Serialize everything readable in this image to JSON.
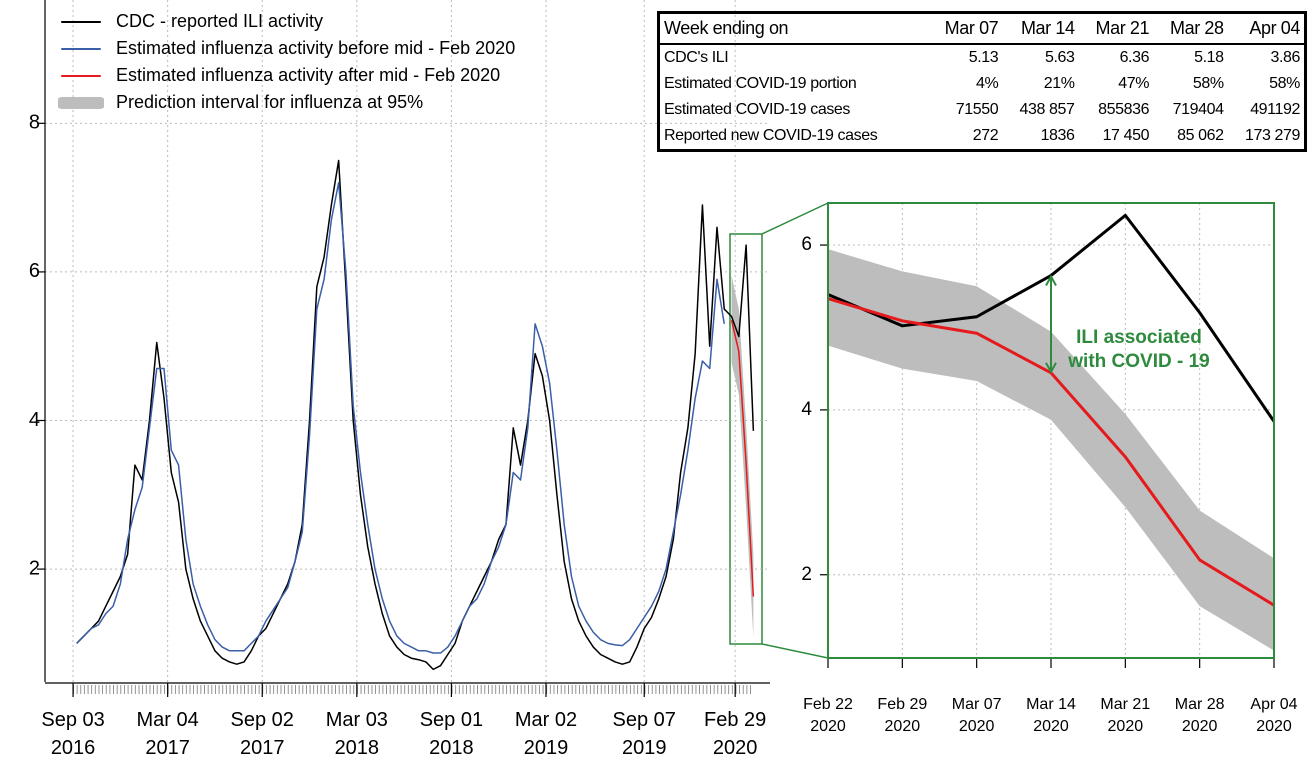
{
  "chart_data": [
    {
      "type": "line",
      "legend": "top-left",
      "grid": true,
      "xlim": [
        "2016-07-11",
        "2020-05-06"
      ],
      "ylim": [
        0.48,
        9.66
      ],
      "yticks": [
        2,
        4,
        6,
        8
      ],
      "xticks": [
        {
          "value": "2016-09-03",
          "label": "Sep 03\n2016"
        },
        {
          "value": "2017-03-04",
          "label": "Mar 04\n2017"
        },
        {
          "value": "2017-09-02",
          "label": "Sep 02\n2017"
        },
        {
          "value": "2018-03-03",
          "label": "Mar 03\n2018"
        },
        {
          "value": "2018-09-01",
          "label": "Sep 01\n2018"
        },
        {
          "value": "2019-03-02",
          "label": "Mar 02\n2019"
        },
        {
          "value": "2019-09-07",
          "label": "Sep 07\n2019"
        },
        {
          "value": "2020-02-29",
          "label": "Feb 29\n2020"
        }
      ],
      "x": [
        "2016-09-10",
        "2016-09-24",
        "2016-10-08",
        "2016-10-22",
        "2016-11-05",
        "2016-11-19",
        "2016-12-03",
        "2016-12-17",
        "2016-12-31",
        "2017-01-14",
        "2017-01-28",
        "2017-02-11",
        "2017-02-25",
        "2017-03-11",
        "2017-03-25",
        "2017-04-08",
        "2017-04-22",
        "2017-05-06",
        "2017-05-20",
        "2017-06-03",
        "2017-06-17",
        "2017-07-01",
        "2017-07-15",
        "2017-07-29",
        "2017-08-12",
        "2017-08-26",
        "2017-09-09",
        "2017-09-23",
        "2017-10-07",
        "2017-10-21",
        "2017-11-04",
        "2017-11-18",
        "2017-12-02",
        "2017-12-16",
        "2017-12-30",
        "2018-01-13",
        "2018-01-27",
        "2018-02-10",
        "2018-02-24",
        "2018-03-10",
        "2018-03-24",
        "2018-04-07",
        "2018-04-21",
        "2018-05-05",
        "2018-05-19",
        "2018-06-02",
        "2018-06-16",
        "2018-06-30",
        "2018-07-14",
        "2018-07-28",
        "2018-08-11",
        "2018-08-25",
        "2018-09-08",
        "2018-09-22",
        "2018-10-06",
        "2018-10-20",
        "2018-11-03",
        "2018-11-17",
        "2018-12-01",
        "2018-12-15",
        "2018-12-29",
        "2019-01-12",
        "2019-01-26",
        "2019-02-09",
        "2019-02-23",
        "2019-03-09",
        "2019-03-23",
        "2019-04-06",
        "2019-04-20",
        "2019-05-04",
        "2019-05-18",
        "2019-06-01",
        "2019-06-15",
        "2019-06-29",
        "2019-07-13",
        "2019-07-27",
        "2019-08-10",
        "2019-08-24",
        "2019-09-07",
        "2019-09-21",
        "2019-10-05",
        "2019-10-19",
        "2019-11-02",
        "2019-11-16",
        "2019-11-30",
        "2019-12-14",
        "2019-12-28",
        "2020-01-11",
        "2020-01-25",
        "2020-02-08",
        "2020-02-22",
        "2020-03-07",
        "2020-03-21",
        "2020-04-04"
      ],
      "series": [
        {
          "name": "CDC - reported ILI activity",
          "color": "#000000",
          "values": [
            1.0,
            1.1,
            1.2,
            1.3,
            1.5,
            1.7,
            1.9,
            2.2,
            3.4,
            3.2,
            4.0,
            5.05,
            4.3,
            3.3,
            2.9,
            2.0,
            1.6,
            1.3,
            1.1,
            0.9,
            0.8,
            0.75,
            0.72,
            0.75,
            0.9,
            1.1,
            1.2,
            1.4,
            1.6,
            1.8,
            2.1,
            2.6,
            4.0,
            5.8,
            6.2,
            6.9,
            7.5,
            5.8,
            4.0,
            3.0,
            2.3,
            1.8,
            1.4,
            1.1,
            0.95,
            0.85,
            0.8,
            0.78,
            0.75,
            0.65,
            0.7,
            0.85,
            1.0,
            1.3,
            1.5,
            1.7,
            1.9,
            2.1,
            2.4,
            2.6,
            3.9,
            3.4,
            4.0,
            4.9,
            4.6,
            4.0,
            3.0,
            2.1,
            1.6,
            1.3,
            1.1,
            0.95,
            0.85,
            0.8,
            0.75,
            0.72,
            0.75,
            0.95,
            1.2,
            1.35,
            1.6,
            1.9,
            2.4,
            3.3,
            3.9,
            4.9,
            6.9,
            5.0,
            6.6,
            5.5,
            5.4,
            5.13,
            6.36,
            3.86
          ]
        },
        {
          "name": "Estimated influenza activity before mid - Feb 2020",
          "color": "#3a5fa8",
          "values": [
            1.0,
            1.1,
            1.2,
            1.25,
            1.4,
            1.5,
            1.8,
            2.4,
            2.8,
            3.1,
            3.9,
            4.7,
            4.7,
            3.6,
            3.4,
            2.4,
            1.8,
            1.5,
            1.25,
            1.05,
            0.95,
            0.9,
            0.9,
            0.9,
            1.0,
            1.1,
            1.3,
            1.45,
            1.6,
            1.75,
            2.1,
            2.5,
            3.8,
            5.5,
            5.9,
            6.7,
            7.2,
            6.0,
            4.2,
            3.3,
            2.6,
            2.0,
            1.6,
            1.3,
            1.1,
            1.0,
            0.95,
            0.9,
            0.9,
            0.87,
            0.87,
            0.95,
            1.1,
            1.3,
            1.5,
            1.6,
            1.8,
            2.1,
            2.3,
            2.6,
            3.3,
            3.2,
            3.9,
            5.3,
            5.0,
            4.5,
            3.6,
            2.6,
            1.9,
            1.5,
            1.3,
            1.15,
            1.05,
            1.0,
            0.98,
            0.97,
            1.05,
            1.2,
            1.35,
            1.5,
            1.7,
            2.0,
            2.5,
            3.0,
            3.6,
            4.3,
            4.8,
            4.7,
            5.9,
            5.3,
            null,
            null,
            null,
            null
          ]
        },
        {
          "name": "Estimated influenza activity after mid - Feb 2020",
          "color": "#e41a1c",
          "values": [
            null,
            null,
            null,
            null,
            null,
            null,
            null,
            null,
            null,
            null,
            null,
            null,
            null,
            null,
            null,
            null,
            null,
            null,
            null,
            null,
            null,
            null,
            null,
            null,
            null,
            null,
            null,
            null,
            null,
            null,
            null,
            null,
            null,
            null,
            null,
            null,
            null,
            null,
            null,
            null,
            null,
            null,
            null,
            null,
            null,
            null,
            null,
            null,
            null,
            null,
            null,
            null,
            null,
            null,
            null,
            null,
            null,
            null,
            null,
            null,
            null,
            null,
            null,
            null,
            null,
            null,
            null,
            null,
            null,
            null,
            null,
            null,
            null,
            null,
            null,
            null,
            null,
            null,
            null,
            null,
            null,
            null,
            null,
            null,
            null,
            null,
            null,
            null,
            null,
            null,
            5.35,
            4.93,
            3.43,
            1.63
          ]
        }
      ],
      "band": {
        "name": "Prediction interval for influenza at 95%",
        "color": "#bdbdbd",
        "upper": [
          null,
          null,
          null,
          null,
          null,
          null,
          null,
          null,
          null,
          null,
          null,
          null,
          null,
          null,
          null,
          null,
          null,
          null,
          null,
          null,
          null,
          null,
          null,
          null,
          null,
          null,
          null,
          null,
          null,
          null,
          null,
          null,
          null,
          null,
          null,
          null,
          null,
          null,
          null,
          null,
          null,
          null,
          null,
          null,
          null,
          null,
          null,
          null,
          null,
          null,
          null,
          null,
          null,
          null,
          null,
          null,
          null,
          null,
          null,
          null,
          null,
          null,
          null,
          null,
          null,
          null,
          null,
          null,
          null,
          null,
          null,
          null,
          null,
          null,
          null,
          null,
          null,
          null,
          null,
          null,
          null,
          null,
          null,
          null,
          null,
          null,
          null,
          null,
          null,
          null,
          5.95,
          5.5,
          3.95,
          2.2
        ],
        "lower": [
          null,
          null,
          null,
          null,
          null,
          null,
          null,
          null,
          null,
          null,
          null,
          null,
          null,
          null,
          null,
          null,
          null,
          null,
          null,
          null,
          null,
          null,
          null,
          null,
          null,
          null,
          null,
          null,
          null,
          null,
          null,
          null,
          null,
          null,
          null,
          null,
          null,
          null,
          null,
          null,
          null,
          null,
          null,
          null,
          null,
          null,
          null,
          null,
          null,
          null,
          null,
          null,
          null,
          null,
          null,
          null,
          null,
          null,
          null,
          null,
          null,
          null,
          null,
          null,
          null,
          null,
          null,
          null,
          null,
          null,
          null,
          null,
          null,
          null,
          null,
          null,
          null,
          null,
          null,
          null,
          null,
          null,
          null,
          null,
          null,
          null,
          null,
          null,
          null,
          null,
          4.78,
          4.35,
          2.82,
          1.08
        ]
      }
    },
    {
      "type": "line",
      "grid": true,
      "xlim": [
        "2020-02-22",
        "2020-04-04"
      ],
      "ylim": [
        0.99,
        6.51
      ],
      "yticks": [
        2,
        4,
        6
      ],
      "xticks": [
        {
          "value": "2020-02-22",
          "label": "Feb 22\n2020"
        },
        {
          "value": "2020-02-29",
          "label": "Feb 29\n2020"
        },
        {
          "value": "2020-03-07",
          "label": "Mar 07\n2020"
        },
        {
          "value": "2020-03-14",
          "label": "Mar 14\n2020"
        },
        {
          "value": "2020-03-21",
          "label": "Mar 21\n2020"
        },
        {
          "value": "2020-03-28",
          "label": "Mar 28\n2020"
        },
        {
          "value": "2020-04-04",
          "label": "Apr 04\n2020"
        }
      ],
      "x": [
        "2020-02-22",
        "2020-02-29",
        "2020-03-07",
        "2020-03-14",
        "2020-03-21",
        "2020-03-28",
        "2020-04-04"
      ],
      "series": [
        {
          "color": "#000000",
          "values": [
            5.4,
            5.02,
            5.13,
            5.63,
            6.36,
            5.18,
            3.86
          ]
        },
        {
          "color": "#e41a1c",
          "values": [
            5.35,
            5.08,
            4.93,
            4.45,
            3.43,
            2.18,
            1.63
          ]
        }
      ],
      "band": {
        "color": "#bdbdbd",
        "upper": [
          5.95,
          5.68,
          5.5,
          4.95,
          3.95,
          2.78,
          2.2
        ],
        "lower": [
          4.78,
          4.5,
          4.35,
          3.88,
          2.82,
          1.62,
          1.08
        ]
      },
      "annotation": "ILI associated\nwith COVID - 19",
      "annotation_color": "#2e8b3e"
    }
  ],
  "table": {
    "header": [
      "Week ending on",
      "Mar 07",
      "Mar 14",
      "Mar 21",
      "Mar 28",
      "Apr 04"
    ],
    "rows": [
      [
        "CDC's ILI",
        "5.13",
        "5.63",
        "6.36",
        "5.18",
        "3.86"
      ],
      [
        "Estimated COVID-19 portion",
        "4%",
        "21%",
        "47%",
        "58%",
        "58%"
      ],
      [
        "Estimated COVID-19 cases",
        "71550",
        "438 857",
        "855836",
        "719404",
        "491192"
      ],
      [
        "Reported new COVID-19 cases",
        "272",
        "1836",
        "17 450",
        "85 062",
        "173 279"
      ]
    ]
  }
}
